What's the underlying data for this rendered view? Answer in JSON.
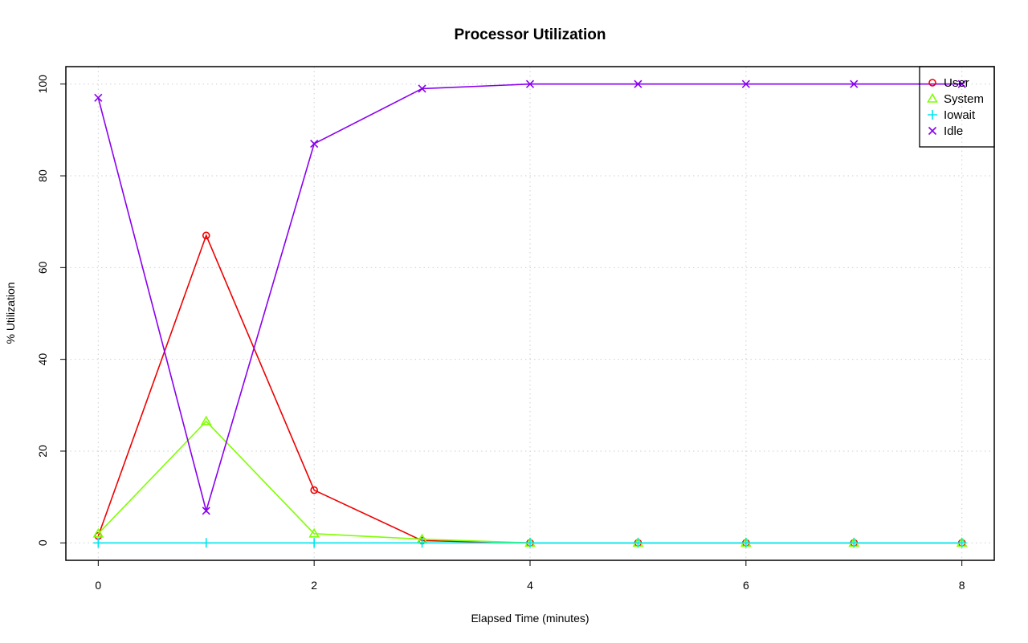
{
  "chart_data": {
    "type": "line",
    "title": "Processor Utilization",
    "xlabel": "Elapsed Time (minutes)",
    "ylabel": "% Utilization",
    "xlim": [
      -0.3,
      8.3
    ],
    "ylim": [
      -3.8,
      103.8
    ],
    "xticks": [
      0,
      2,
      4,
      6,
      8
    ],
    "yticks": [
      0,
      20,
      40,
      60,
      80,
      100
    ],
    "grid": true,
    "legend_position": "top-right",
    "x": [
      0,
      1,
      2,
      3,
      4,
      5,
      6,
      7,
      8
    ],
    "series": [
      {
        "name": "User",
        "color": "#ee0000",
        "marker": "circle",
        "values": [
          1.5,
          67,
          11.5,
          0.5,
          0,
          0,
          0,
          0,
          0
        ]
      },
      {
        "name": "System",
        "color": "#7fff00",
        "marker": "triangle",
        "values": [
          2,
          26.5,
          2,
          0.8,
          0,
          0,
          0,
          0,
          0
        ]
      },
      {
        "name": "Iowait",
        "color": "#00e5ee",
        "marker": "plus",
        "values": [
          0,
          0,
          0,
          0,
          0,
          0,
          0,
          0,
          0
        ]
      },
      {
        "name": "Idle",
        "color": "#8a00ee",
        "marker": "cross",
        "values": [
          97,
          7,
          87,
          99,
          100,
          100,
          100,
          100,
          100
        ]
      }
    ]
  }
}
